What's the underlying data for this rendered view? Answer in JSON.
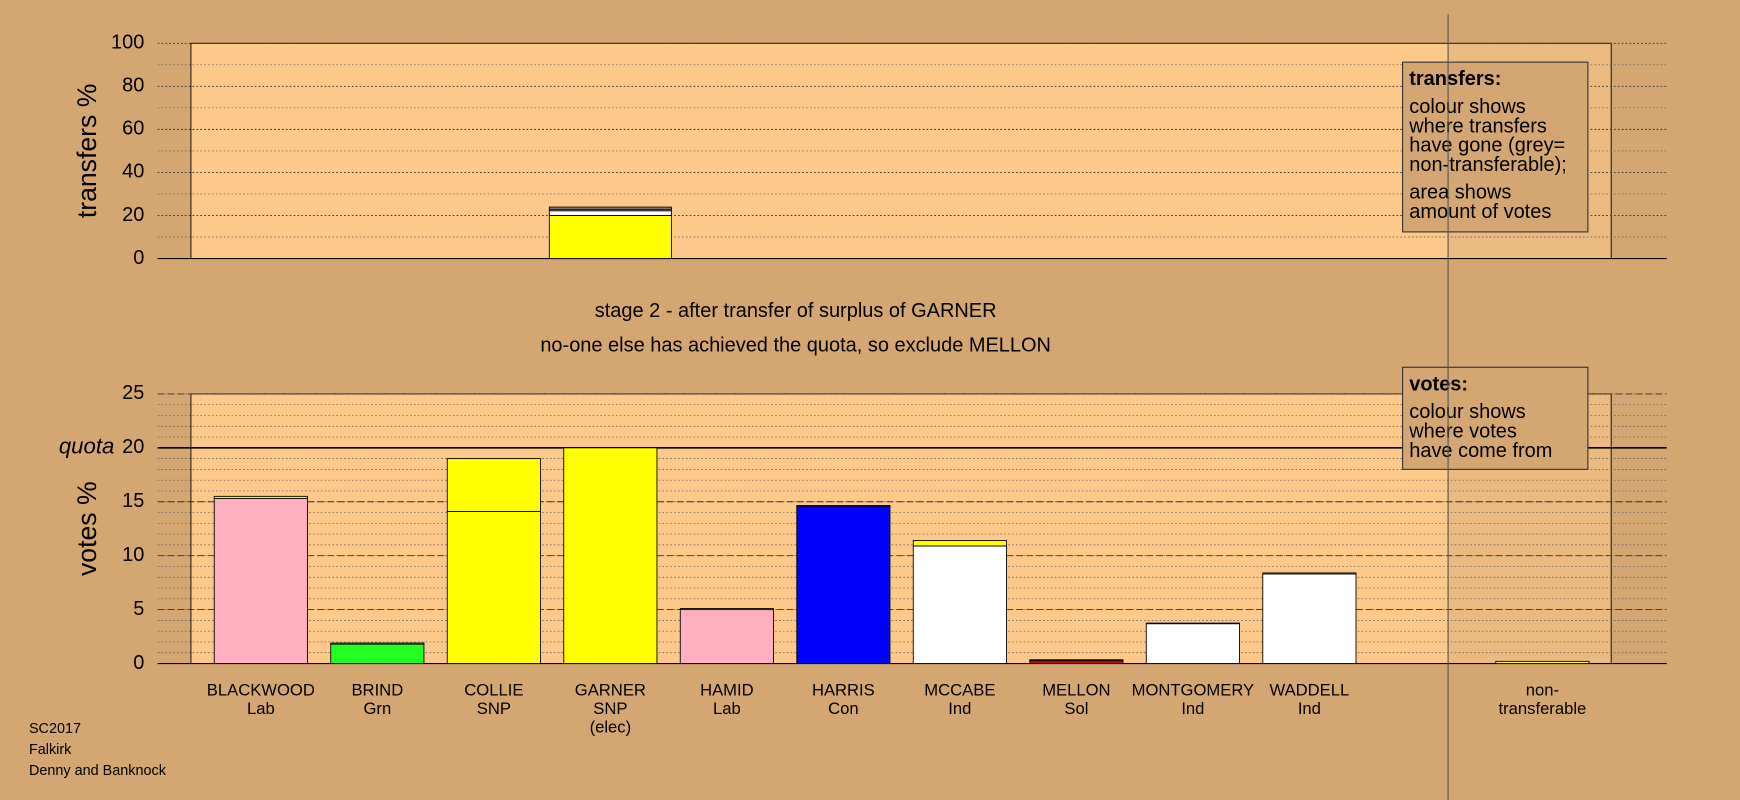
{
  "chart_data": [
    {
      "type": "bar",
      "ylabel": "transfers %",
      "ylim": [
        0,
        100
      ],
      "yticks": [
        0,
        20,
        40,
        60,
        80,
        100
      ],
      "minor_step": 10,
      "grid": true,
      "major_grid": "dotted",
      "series": [
        {
          "color": "#ffff00",
          "values": [
            null,
            null,
            null,
            20,
            null,
            null,
            null,
            null,
            null,
            null,
            null,
            null
          ]
        },
        {
          "color": "#ffffff",
          "values": [
            null,
            null,
            null,
            2.2,
            null,
            null,
            null,
            null,
            null,
            null,
            null,
            null
          ]
        },
        {
          "color": "#ffb0c0",
          "values": [
            null,
            null,
            null,
            0.7,
            null,
            null,
            null,
            null,
            null,
            null,
            null,
            null
          ]
        },
        {
          "color": "#909090",
          "values": [
            null,
            null,
            null,
            1.0,
            null,
            null,
            null,
            null,
            null,
            null,
            null,
            null
          ]
        }
      ],
      "legend": {
        "title": "transfers:",
        "paragraphs": [
          [
            "colour shows",
            "where transfers",
            "have gone (grey=",
            "non-transferable);"
          ],
          [
            "area shows",
            "amount of votes"
          ]
        ]
      }
    },
    {
      "type": "bar",
      "ylabel": "votes %",
      "ylim": [
        0,
        25
      ],
      "yticks": [
        0,
        5,
        10,
        15,
        20,
        25
      ],
      "minor_step": 1,
      "grid": true,
      "major_grid": "dashed",
      "quota": {
        "label": "quota",
        "value": 20
      },
      "categories": [
        [
          "BLACKWOOD",
          "Lab"
        ],
        [
          "BRIND",
          "Grn"
        ],
        [
          "COLLIE",
          "SNP"
        ],
        [
          "GARNER",
          "SNP",
          "(elec)"
        ],
        [
          "HAMID",
          "Lab"
        ],
        [
          "HARRIS",
          "Con"
        ],
        [
          "MCCABE",
          "Ind"
        ],
        [
          "MELLON",
          "Sol"
        ],
        [
          "MONTGOMERY",
          "Ind"
        ],
        [
          "WADDELL",
          "Ind"
        ],
        null,
        [
          "non-",
          "transferable"
        ]
      ],
      "series": [
        {
          "colors": [
            "#ffb0c0",
            "#22ff22",
            "#ffff00",
            "#ffff00",
            "#ffb0c0",
            "#0000ff",
            "#ffffff",
            "#cc0000",
            "#ffffff",
            "#ffffff",
            null,
            null
          ],
          "values": [
            15.3,
            1.8,
            14.1,
            20,
            5.0,
            14.6,
            10.9,
            0.3,
            3.7,
            8.3,
            null,
            null
          ]
        },
        {
          "color": "#ffff00",
          "values": [
            0.2,
            0.1,
            4.9,
            null,
            0.1,
            0.05,
            0.5,
            0.05,
            0.05,
            0.1,
            null,
            0.2
          ]
        }
      ],
      "legend": {
        "title": "votes:",
        "paragraphs": [
          [
            "colour shows",
            "where votes",
            "have come from"
          ]
        ]
      }
    }
  ],
  "annotations": [
    "stage 2 - after transfer of surplus of GARNER",
    "no-one else has achieved the quota, so exclude MELLON"
  ],
  "footer": [
    "SC2017",
    "Falkirk",
    "Denny and Banknock"
  ]
}
